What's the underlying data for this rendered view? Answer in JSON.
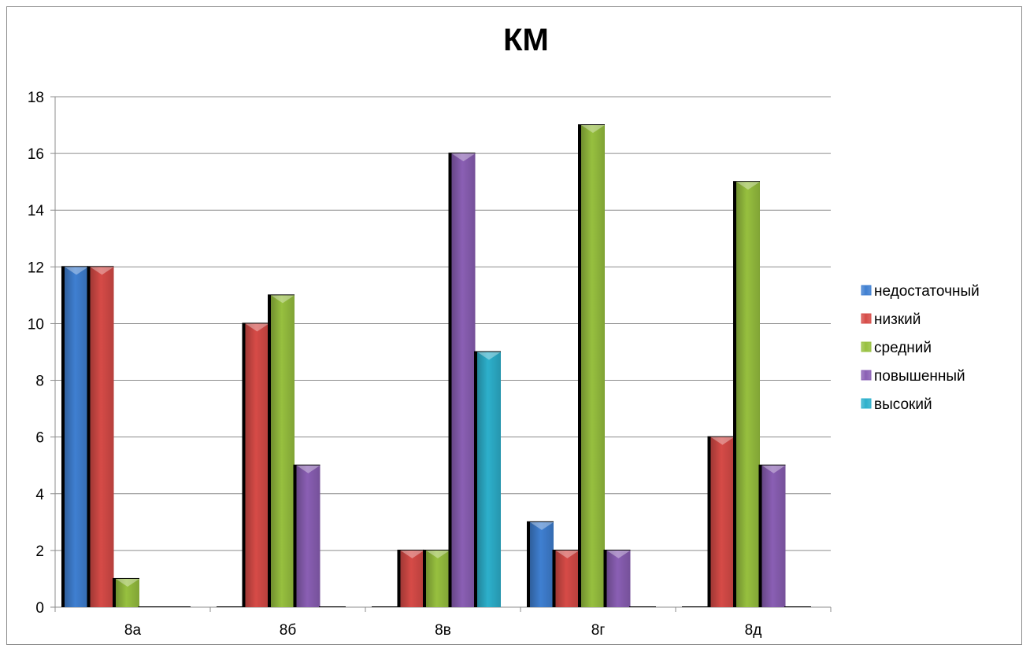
{
  "chart_data": {
    "type": "bar",
    "title": "КМ",
    "categories": [
      "8а",
      "8б",
      "8в",
      "8г",
      "8д"
    ],
    "series": [
      {
        "name": "недостаточный",
        "values": [
          12,
          0,
          0,
          3,
          0
        ],
        "color": "#3F7FD1"
      },
      {
        "name": "низкий",
        "values": [
          12,
          10,
          2,
          2,
          6
        ],
        "color": "#D64B47"
      },
      {
        "name": "средний",
        "values": [
          1,
          11,
          2,
          17,
          15
        ],
        "color": "#97C03F"
      },
      {
        "name": "повышенный",
        "values": [
          0,
          5,
          16,
          2,
          5
        ],
        "color": "#8A5FB4"
      },
      {
        "name": "высокий",
        "values": [
          0,
          0,
          9,
          0,
          0
        ],
        "color": "#2DB0CC"
      }
    ],
    "ylim": [
      0,
      18
    ],
    "yticks": [
      0,
      2,
      4,
      6,
      8,
      10,
      12,
      14,
      16,
      18
    ],
    "grid": true,
    "legend": "right"
  }
}
